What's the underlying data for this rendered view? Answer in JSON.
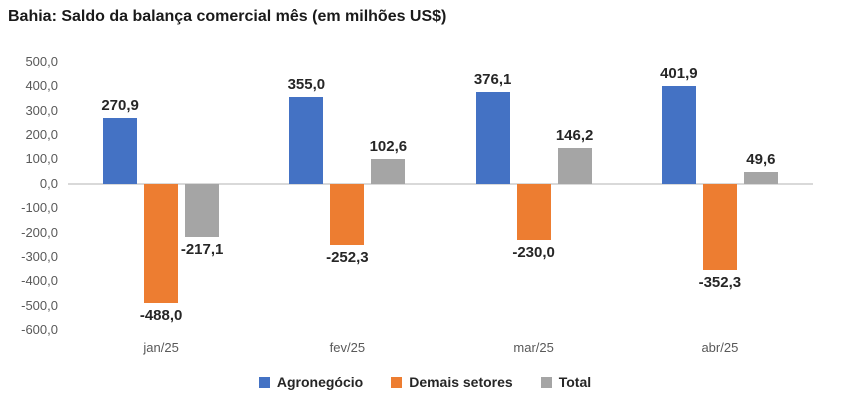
{
  "chart_data": {
    "type": "bar",
    "title": "Bahia: Saldo da balança comercial mês (em milhões US$)",
    "categories": [
      "jan/25",
      "fev/25",
      "mar/25",
      "abr/25"
    ],
    "series": [
      {
        "name": "Agronegócio",
        "color": "#4472C4",
        "values": [
          270.9,
          355.0,
          376.1,
          401.9
        ],
        "labels": [
          "270,9",
          "355,0",
          "376,1",
          "401,9"
        ]
      },
      {
        "name": "Demais setores",
        "color": "#ED7D31",
        "values": [
          -488.0,
          -252.3,
          -230.0,
          -352.3
        ],
        "labels": [
          "-488,0",
          "-252,3",
          "-230,0",
          "-352,3"
        ]
      },
      {
        "name": "Total",
        "color": "#A5A5A5",
        "values": [
          -217.1,
          102.6,
          146.2,
          49.6
        ],
        "labels": [
          "-217,1",
          "102,6",
          "146,2",
          "49,6"
        ]
      }
    ],
    "ylim": [
      -600,
      500
    ],
    "ytick_step": 100,
    "yticks": [
      "500,0",
      "400,0",
      "300,0",
      "200,0",
      "100,0",
      "0,0",
      "-100,0",
      "-200,0",
      "-300,0",
      "-400,0",
      "-500,0",
      "-600,0"
    ],
    "grid": false,
    "legend_position": "bottom",
    "axis_line_color": "#D9D9D9",
    "tick_text_color": "#595959",
    "data_label_color": "#262626"
  }
}
